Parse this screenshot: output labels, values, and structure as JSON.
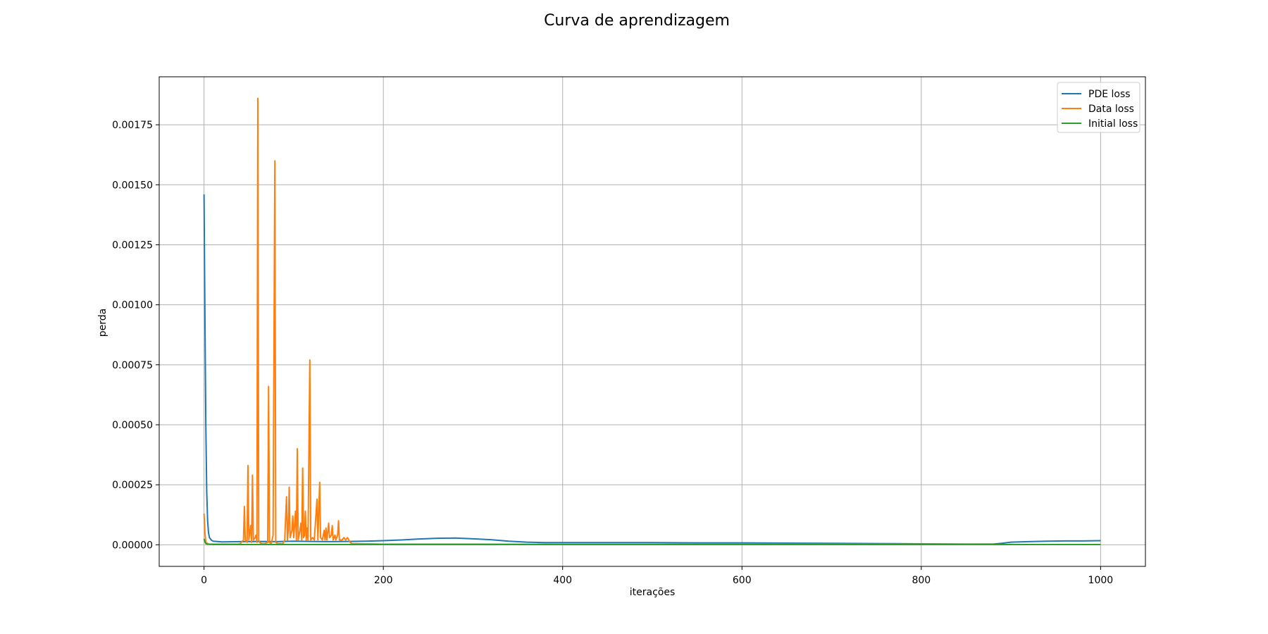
{
  "chart_data": {
    "type": "line",
    "title": "Curva de aprendizagem",
    "xlabel": "iterações",
    "ylabel": "perda",
    "xlim": [
      -50,
      1050
    ],
    "ylim": [
      -9e-05,
      0.00195
    ],
    "xticks": [
      0,
      200,
      400,
      600,
      800,
      1000
    ],
    "xtick_labels": [
      "0",
      "200",
      "400",
      "600",
      "800",
      "1000"
    ],
    "yticks": [
      0,
      0.00025,
      0.0005,
      0.00075,
      0.001,
      0.00125,
      0.0015,
      0.00175
    ],
    "ytick_labels": [
      "0.00000",
      "0.00025",
      "0.00050",
      "0.00075",
      "0.00100",
      "0.00125",
      "0.00150",
      "0.00175"
    ],
    "grid": true,
    "legend_position": "top-right",
    "series": [
      {
        "name": "PDE loss",
        "color": "#1f77b4",
        "points": [
          [
            0,
            0.00146
          ],
          [
            1,
            0.00095
          ],
          [
            2,
            0.0005
          ],
          [
            3,
            0.00022
          ],
          [
            4,
            0.0001
          ],
          [
            5,
            5e-05
          ],
          [
            6,
            3e-05
          ],
          [
            8,
            2e-05
          ],
          [
            10,
            1.5e-05
          ],
          [
            20,
            1.2e-05
          ],
          [
            40,
            1.3e-05
          ],
          [
            60,
            1.4e-05
          ],
          [
            80,
            1.3e-05
          ],
          [
            100,
            1.5e-05
          ],
          [
            120,
            1.4e-05
          ],
          [
            140,
            1.3e-05
          ],
          [
            160,
            1.4e-05
          ],
          [
            180,
            1.5e-05
          ],
          [
            200,
            1.7e-05
          ],
          [
            220,
            2e-05
          ],
          [
            240,
            2.4e-05
          ],
          [
            260,
            2.7e-05
          ],
          [
            280,
            2.8e-05
          ],
          [
            300,
            2.5e-05
          ],
          [
            320,
            2.1e-05
          ],
          [
            340,
            1.5e-05
          ],
          [
            360,
            1.1e-05
          ],
          [
            380,
            9e-06
          ],
          [
            400,
            9e-06
          ],
          [
            450,
            9e-06
          ],
          [
            500,
            9e-06
          ],
          [
            550,
            8e-06
          ],
          [
            600,
            8e-06
          ],
          [
            650,
            7e-06
          ],
          [
            700,
            6e-06
          ],
          [
            750,
            5e-06
          ],
          [
            800,
            4e-06
          ],
          [
            850,
            3e-06
          ],
          [
            880,
            3e-06
          ],
          [
            890,
            6e-06
          ],
          [
            900,
            1.1e-05
          ],
          [
            920,
            1.3e-05
          ],
          [
            940,
            1.5e-05
          ],
          [
            960,
            1.6e-05
          ],
          [
            980,
            1.6e-05
          ],
          [
            1000,
            1.7e-05
          ]
        ]
      },
      {
        "name": "Data loss",
        "color": "#ff7f0e",
        "points": [
          [
            0,
            0.00013
          ],
          [
            1,
            5e-05
          ],
          [
            2,
            1e-05
          ],
          [
            5,
            3e-06
          ],
          [
            20,
            3e-06
          ],
          [
            40,
            3e-06
          ],
          [
            44,
            2e-05
          ],
          [
            45,
            0.00016
          ],
          [
            46,
            2e-05
          ],
          [
            48,
            1e-05
          ],
          [
            49,
            0.00033
          ],
          [
            50,
            2e-05
          ],
          [
            51,
            5e-05
          ],
          [
            52,
            8e-05
          ],
          [
            53,
            1e-05
          ],
          [
            54,
            0.00029
          ],
          [
            55,
            2e-05
          ],
          [
            57,
            3e-05
          ],
          [
            58,
            4e-05
          ],
          [
            59,
            1e-05
          ],
          [
            60,
            0.00186
          ],
          [
            61,
            2e-05
          ],
          [
            62,
            1e-05
          ],
          [
            64,
            5e-06
          ],
          [
            68,
            5e-06
          ],
          [
            71,
            1e-05
          ],
          [
            72,
            0.00066
          ],
          [
            73,
            1e-05
          ],
          [
            75,
            5e-06
          ],
          [
            77,
            4e-05
          ],
          [
            79,
            0.0016
          ],
          [
            80,
            1e-05
          ],
          [
            82,
            5e-06
          ],
          [
            88,
            5e-06
          ],
          [
            90,
            2e-05
          ],
          [
            92,
            0.0002
          ],
          [
            93,
            2e-05
          ],
          [
            94,
            6e-05
          ],
          [
            95,
            0.00024
          ],
          [
            96,
            3e-05
          ],
          [
            98,
            6e-05
          ],
          [
            99,
            0.00012
          ],
          [
            100,
            3e-05
          ],
          [
            101,
            8e-05
          ],
          [
            102,
            0.00014
          ],
          [
            103,
            2e-05
          ],
          [
            104,
            0.0004
          ],
          [
            105,
            2e-05
          ],
          [
            107,
            6e-05
          ],
          [
            108,
            9e-05
          ],
          [
            109,
            2e-05
          ],
          [
            110,
            0.00032
          ],
          [
            111,
            3e-05
          ],
          [
            112,
            4e-05
          ],
          [
            113,
            0.00014
          ],
          [
            114,
            2e-05
          ],
          [
            115,
            7e-05
          ],
          [
            116,
            2e-05
          ],
          [
            118,
            0.00077
          ],
          [
            119,
            2e-05
          ],
          [
            121,
            3e-05
          ],
          [
            123,
            2e-05
          ],
          [
            126,
            0.00019
          ],
          [
            127,
            2e-05
          ],
          [
            129,
            0.00026
          ],
          [
            130,
            3e-05
          ],
          [
            132,
            2e-05
          ],
          [
            134,
            6e-05
          ],
          [
            135,
            2e-05
          ],
          [
            136,
            7e-05
          ],
          [
            137,
            2e-05
          ],
          [
            139,
            9e-05
          ],
          [
            140,
            3e-05
          ],
          [
            142,
            4e-05
          ],
          [
            143,
            8e-05
          ],
          [
            144,
            2e-05
          ],
          [
            146,
            4e-05
          ],
          [
            147,
            2e-05
          ],
          [
            149,
            4e-05
          ],
          [
            150,
            0.0001
          ],
          [
            151,
            2e-05
          ],
          [
            154,
            2e-05
          ],
          [
            156,
            3e-05
          ],
          [
            158,
            2e-05
          ],
          [
            160,
            3e-05
          ],
          [
            163,
            1e-05
          ],
          [
            165,
            5e-06
          ],
          [
            200,
            3e-06
          ],
          [
            300,
            3e-06
          ],
          [
            400,
            2e-06
          ],
          [
            500,
            2e-06
          ],
          [
            600,
            2e-06
          ],
          [
            700,
            2e-06
          ],
          [
            800,
            2e-06
          ],
          [
            900,
            1e-06
          ],
          [
            1000,
            1e-06
          ]
        ]
      },
      {
        "name": "Initial loss",
        "color": "#2ca02c",
        "points": [
          [
            0,
            2.5e-05
          ],
          [
            1,
            1.2e-05
          ],
          [
            2,
            5e-06
          ],
          [
            4,
            2e-06
          ],
          [
            10,
            1e-06
          ],
          [
            100,
            1e-06
          ],
          [
            200,
            1e-06
          ],
          [
            400,
            1e-06
          ],
          [
            600,
            1e-06
          ],
          [
            800,
            1e-06
          ],
          [
            1000,
            1e-06
          ]
        ]
      }
    ]
  }
}
